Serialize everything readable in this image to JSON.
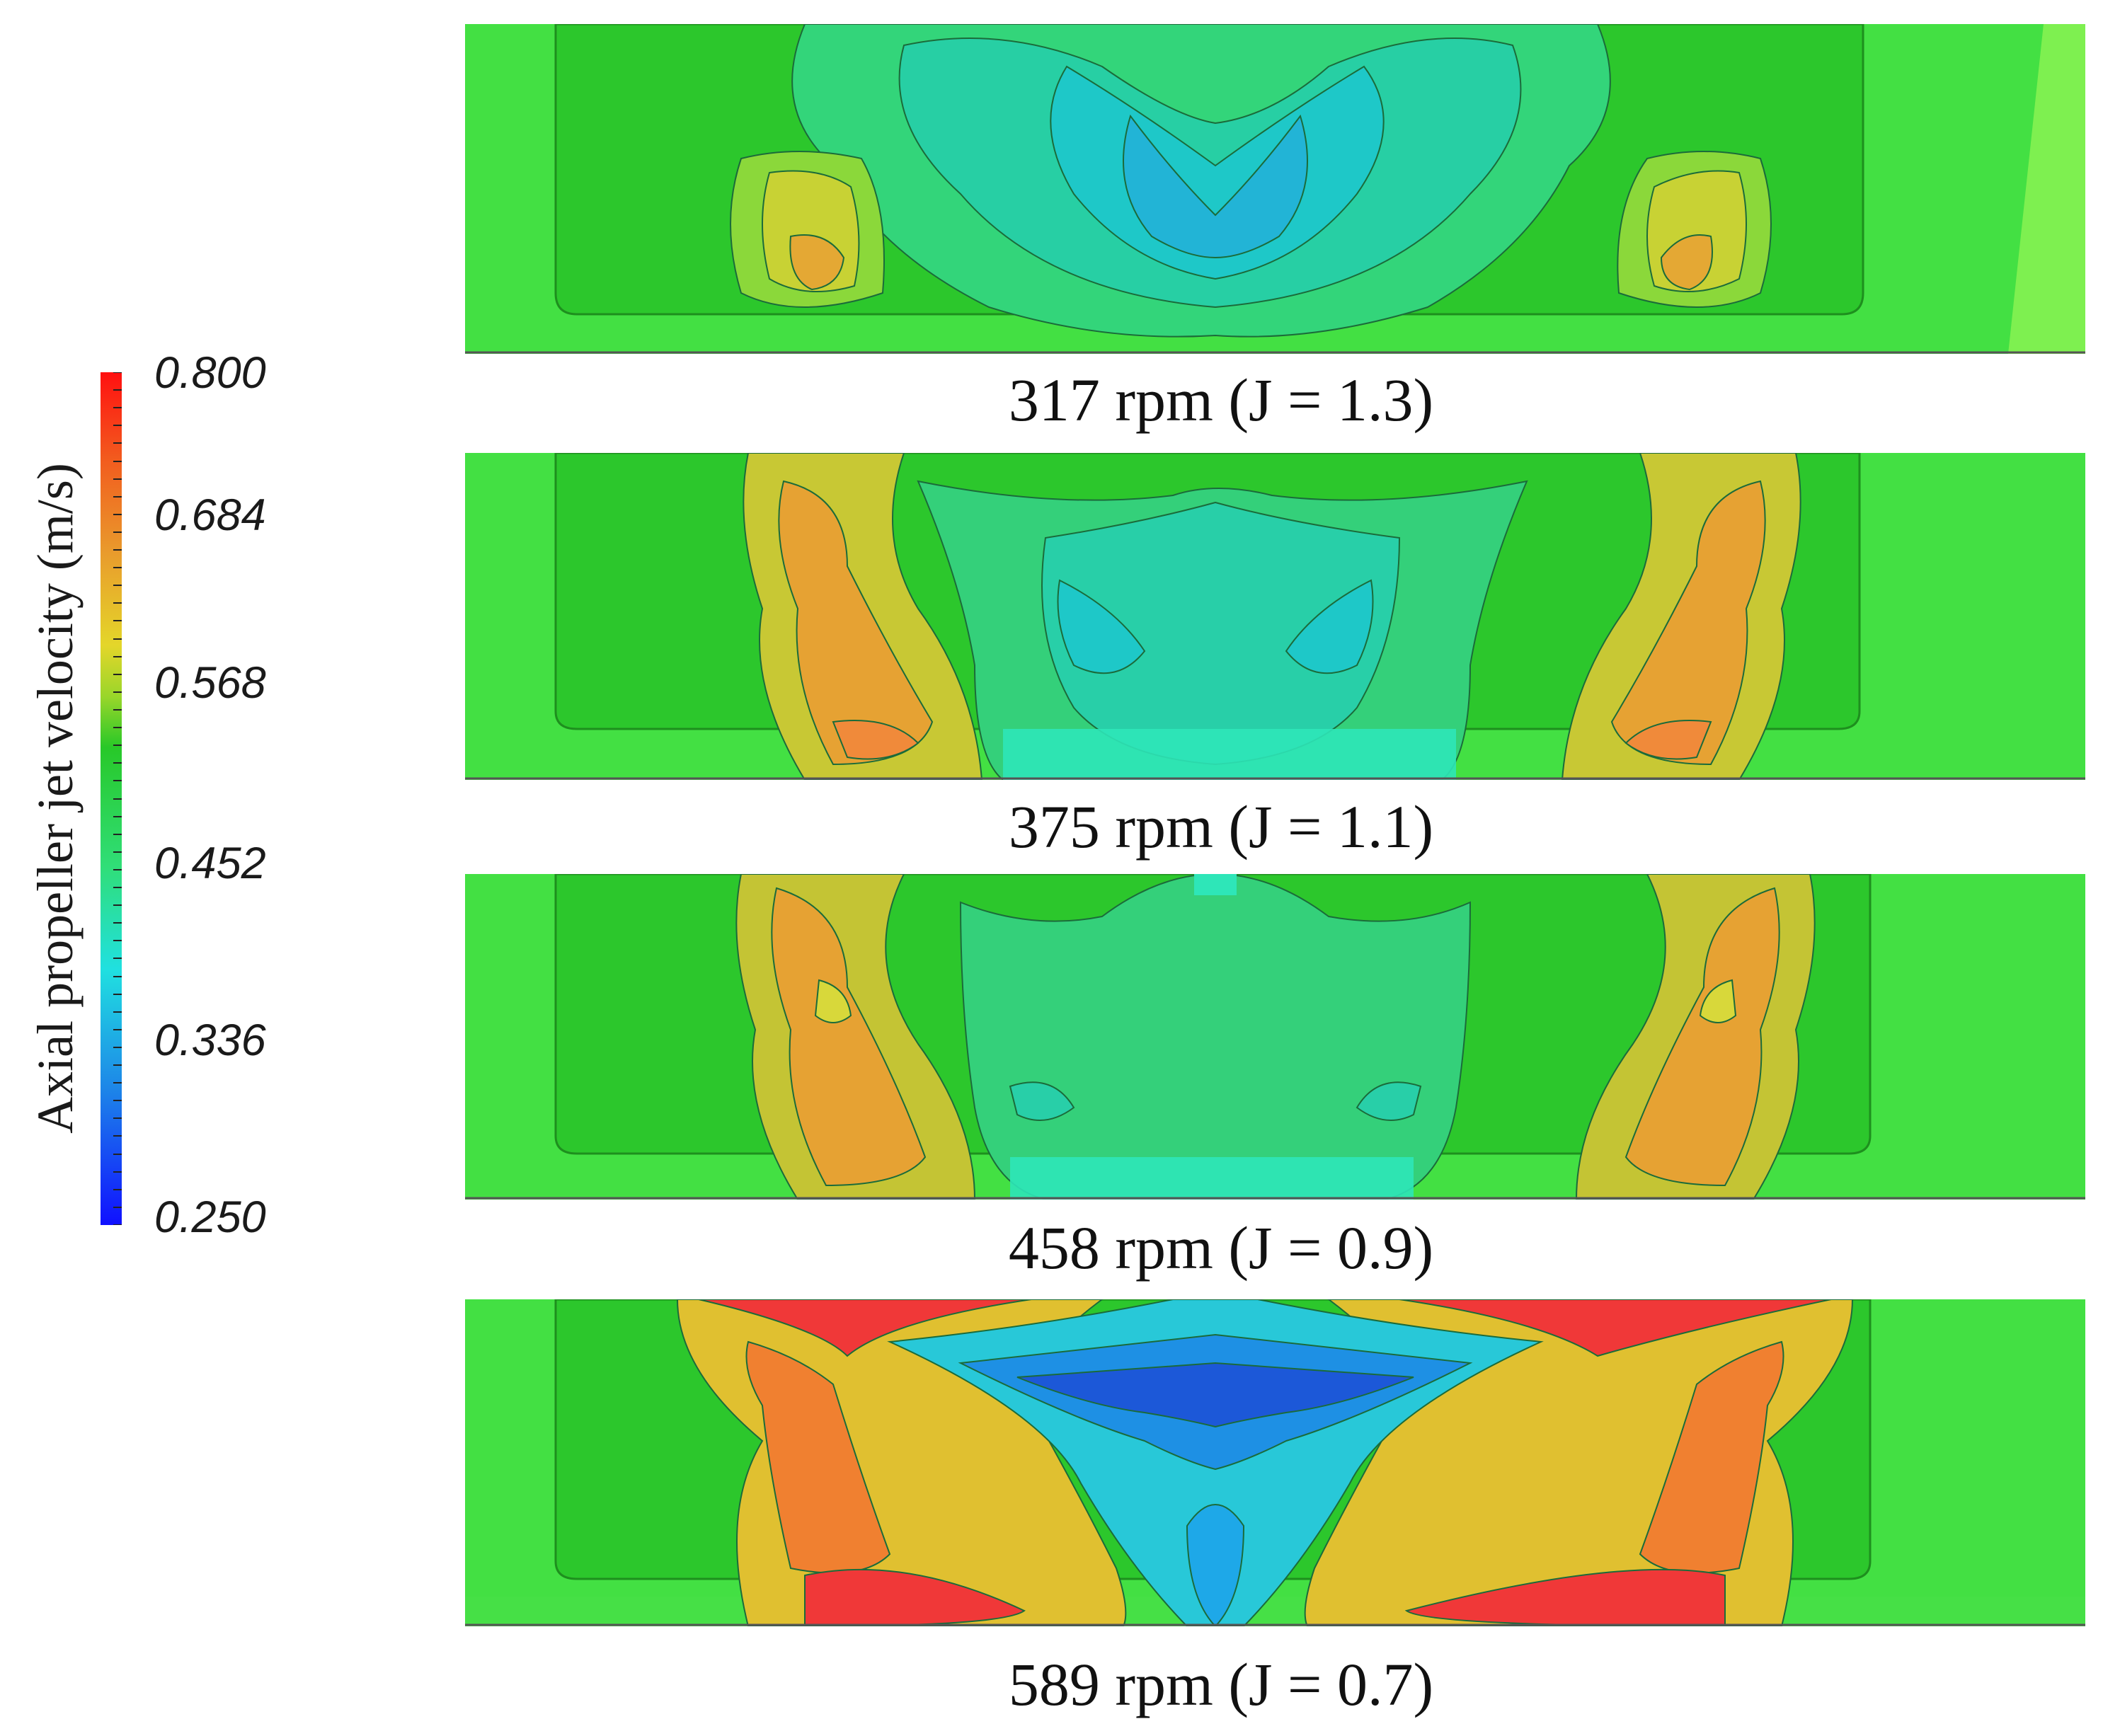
{
  "colorbar": {
    "title": "Axial propeller jet velocity (m/s)",
    "tick_labels": [
      "0.800",
      "0.684",
      "0.568",
      "0.452",
      "0.336",
      "0.250"
    ]
  },
  "panels": [
    {
      "caption": "317 rpm (J = 1.3)"
    },
    {
      "caption": "375 rpm (J = 1.1)"
    },
    {
      "caption": "458 rpm (J = 0.9)"
    },
    {
      "caption": "589 rpm (J = 0.7)"
    }
  ],
  "colors": {
    "background_green": "#43e043",
    "hull_green": "#2cc72c",
    "wake_teal": "#24d899",
    "core_cyan": "#1cc4c4",
    "low_blue": "#1e72e0",
    "high_yellow": "#e0d030",
    "high_orange": "#f08030",
    "max_red": "#f03030"
  }
}
